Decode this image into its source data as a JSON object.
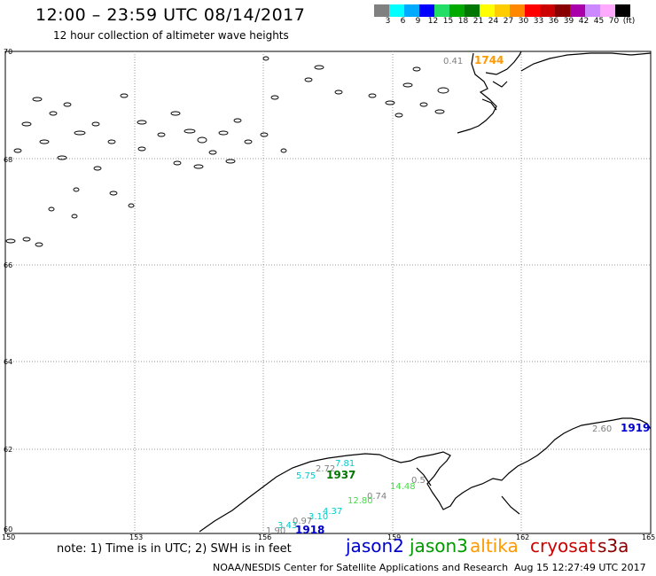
{
  "header": {
    "title": "12:00 – 23:59 UTC 08/14/2017",
    "subtitle": "12 hour collection of altimeter wave heights"
  },
  "color_scale": {
    "colors": [
      "#808080",
      "#00ffff",
      "#00aaff",
      "#0000ff",
      "#22dd66",
      "#00aa00",
      "#007700",
      "#ffff00",
      "#ffcc00",
      "#ff8800",
      "#ff0000",
      "#cc0000",
      "#880000",
      "#aa00aa",
      "#cc88ff",
      "#ffaaff",
      "#000000"
    ],
    "labels": [
      "3",
      "6",
      "9",
      "12",
      "15",
      "18",
      "21",
      "24",
      "27",
      "30",
      "33",
      "36",
      "39",
      "42",
      "45",
      "70",
      "(ft)"
    ]
  },
  "map": {
    "lat_labels": [
      "70",
      "68",
      "66",
      "64",
      "62",
      "60"
    ],
    "lon_labels": [
      "150",
      "153",
      "156",
      "159",
      "162",
      "165"
    ],
    "wave_heights": [
      {
        "text": "0.41",
        "color": "#808080"
      },
      {
        "text": "2.60",
        "color": "#808080"
      },
      {
        "text": "2.72",
        "color": "#808080"
      },
      {
        "text": "7.81",
        "color": "#00cccc"
      },
      {
        "text": "5.75",
        "color": "#00cccc"
      },
      {
        "text": "0.5",
        "color": "#808080"
      },
      {
        "text": "0.74",
        "color": "#808080"
      },
      {
        "text": "14.48",
        "color": "#44dd44"
      },
      {
        "text": "12.80",
        "color": "#44dd44"
      },
      {
        "text": "4.37",
        "color": "#00cccc"
      },
      {
        "text": "3.10",
        "color": "#00cccc"
      },
      {
        "text": "0.97",
        "color": "#808080"
      },
      {
        "text": "3.43",
        "color": "#00cccc"
      },
      {
        "text": "1.90",
        "color": "#808080"
      }
    ],
    "pass_times": [
      {
        "text": "1744",
        "color": "#ff9900"
      },
      {
        "text": "1919",
        "color": "#0000cc"
      },
      {
        "text": "1937",
        "color": "#007700"
      },
      {
        "text": "1918",
        "color": "#0000cc"
      }
    ]
  },
  "note": "note:  1) Time is in UTC;  2) SWH is in feet",
  "legend": [
    {
      "name": "jason2",
      "color": "#0000cc"
    },
    {
      "name": "jason3",
      "color": "#009900"
    },
    {
      "name": "altika",
      "color": "#ff9900"
    },
    {
      "name": "cryosat",
      "color": "#cc0000"
    },
    {
      "name": "s3a",
      "color": "#880000"
    }
  ],
  "footer": {
    "credit": "NOAA/NESDIS Center for Satellite Applications and Research",
    "timestamp": "Aug 15 12:27:49 UTC 2017"
  }
}
